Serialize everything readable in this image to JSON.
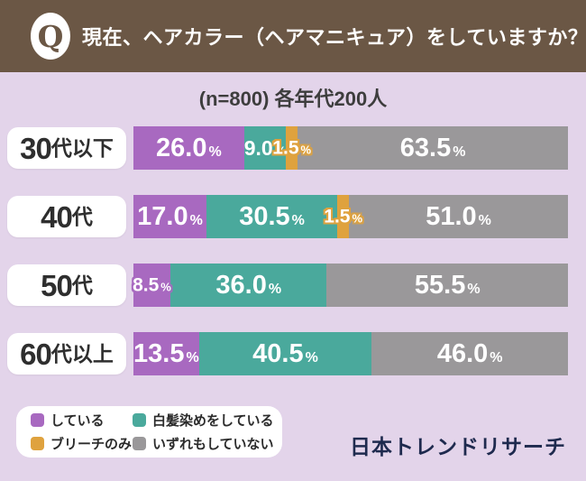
{
  "header": {
    "q_badge": "Q",
    "question": "現在、ヘアカラー（ヘアマニキュア）をしていますか？"
  },
  "subtitle": "(n=800) 各年代200人",
  "percent_suffix": "%",
  "brand": "日本トレンドリサーチ",
  "colors": {
    "doing": "#a869c0",
    "gray_dye": "#4aa99c",
    "bleach": "#dfa23e",
    "none": "#9a989a",
    "header_bg": "#6b5745",
    "page_bg": "#e3d4ea",
    "brand_text": "#1e2a4e"
  },
  "legend": {
    "items": [
      {
        "series": "doing",
        "label": "している",
        "color": "#a869c0"
      },
      {
        "series": "gray_dye",
        "label": "白髪染めをしている",
        "color": "#4aa99c"
      },
      {
        "series": "bleach",
        "label": "ブリーチのみ",
        "color": "#dfa23e"
      },
      {
        "series": "none",
        "label": "いずれもしていない",
        "color": "#9a989a"
      }
    ]
  },
  "chart_data": {
    "type": "bar",
    "orientation": "horizontal",
    "stacked": true,
    "unit": "%",
    "title": "現在、ヘアカラー（ヘアマニキュア）をしていますか？",
    "subtitle": "(n=800) 各年代200人",
    "categories": [
      "30代以下",
      "40代",
      "50代",
      "60代以上"
    ],
    "series": [
      {
        "name": "している",
        "color": "#a869c0",
        "values": [
          26.0,
          17.0,
          8.5,
          13.5
        ]
      },
      {
        "name": "白髪染めをしている",
        "color": "#4aa99c",
        "values": [
          9.0,
          30.5,
          36.0,
          40.5
        ]
      },
      {
        "name": "ブリーチのみ",
        "color": "#dfa23e",
        "values": [
          1.5,
          1.5,
          0.0,
          0.0
        ]
      },
      {
        "name": "いずれもしていない",
        "color": "#9a989a",
        "values": [
          63.5,
          51.0,
          55.5,
          46.0
        ]
      }
    ],
    "xlim": [
      0,
      100
    ],
    "grid": false,
    "legend_position": "bottom-left"
  },
  "rows": [
    {
      "label": "30代以下",
      "label_num": "30",
      "label_suffix": "代以下",
      "segments": [
        {
          "series": "doing",
          "value": "26.0",
          "pct": 26.0,
          "size": "lg"
        },
        {
          "series": "gray_dye",
          "value": "9.0",
          "pct": 9.0,
          "size": "md"
        },
        {
          "series": "bleach",
          "value": "1.5",
          "pct": 1.5,
          "size": "sm",
          "outline": true,
          "min": 13
        },
        {
          "series": "none",
          "value": "63.5",
          "pct": 63.5,
          "size": "lg"
        }
      ]
    },
    {
      "label": "40代",
      "label_num": "40",
      "label_suffix": "代",
      "segments": [
        {
          "series": "doing",
          "value": "17.0",
          "pct": 17.0,
          "size": "lg"
        },
        {
          "series": "gray_dye",
          "value": "30.5",
          "pct": 30.5,
          "size": "lg"
        },
        {
          "series": "bleach",
          "value": "1.5",
          "pct": 1.5,
          "size": "sm",
          "outline": true,
          "min": 13
        },
        {
          "series": "none",
          "value": "51.0",
          "pct": 51.0,
          "size": "lg"
        }
      ]
    },
    {
      "label": "50代",
      "label_num": "50",
      "label_suffix": "代",
      "segments": [
        {
          "series": "doing",
          "value": "8.5",
          "pct": 8.5,
          "size": "sm",
          "outline": true
        },
        {
          "series": "gray_dye",
          "value": "36.0",
          "pct": 36.0,
          "size": "lg"
        },
        {
          "series": "none",
          "value": "55.5",
          "pct": 55.5,
          "size": "lg"
        }
      ]
    },
    {
      "label": "60代以上",
      "label_num": "60",
      "label_suffix": "代以上",
      "segments": [
        {
          "series": "doing",
          "value": "13.5",
          "pct": 13.5,
          "size": "lg"
        },
        {
          "series": "gray_dye",
          "value": "40.5",
          "pct": 40.5,
          "size": "lg"
        },
        {
          "series": "none",
          "value": "46.0",
          "pct": 46.0,
          "size": "lg"
        }
      ]
    }
  ]
}
